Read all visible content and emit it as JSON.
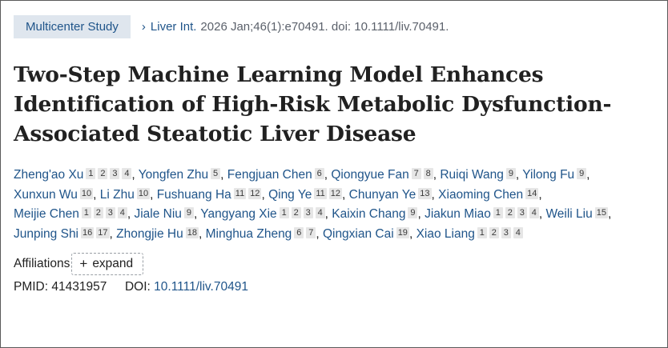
{
  "badge": "Multicenter Study",
  "journal": {
    "name": "Liver Int.",
    "citation": "2026 Jan;46(1):e70491. doi: 10.1111/liv.70491."
  },
  "title": "Two-Step Machine Learning Model Enhances Identification of High-Risk Metabolic Dysfunction-Associated Steatotic Liver Disease",
  "authors": [
    {
      "name": "Zheng'ao Xu",
      "affils": [
        "1",
        "2",
        "3",
        "4"
      ]
    },
    {
      "name": "Yongfen Zhu",
      "affils": [
        "5"
      ]
    },
    {
      "name": "Fengjuan Chen",
      "affils": [
        "6"
      ]
    },
    {
      "name": "Qiongyue Fan",
      "affils": [
        "7",
        "8"
      ]
    },
    {
      "name": "Ruiqi Wang",
      "affils": [
        "9"
      ]
    },
    {
      "name": "Yilong Fu",
      "affils": [
        "9"
      ]
    },
    {
      "name": "Xunxun Wu",
      "affils": [
        "10"
      ]
    },
    {
      "name": "Li Zhu",
      "affils": [
        "10"
      ]
    },
    {
      "name": "Fushuang Ha",
      "affils": [
        "11",
        "12"
      ]
    },
    {
      "name": "Qing Ye",
      "affils": [
        "11",
        "12"
      ]
    },
    {
      "name": "Chunyan Ye",
      "affils": [
        "13"
      ]
    },
    {
      "name": "Xiaoming Chen",
      "affils": [
        "14"
      ]
    },
    {
      "name": "Meijie Chen",
      "affils": [
        "1",
        "2",
        "3",
        "4"
      ]
    },
    {
      "name": "Jiale Niu",
      "affils": [
        "9"
      ]
    },
    {
      "name": "Yangyang Xie",
      "affils": [
        "1",
        "2",
        "3",
        "4"
      ]
    },
    {
      "name": "Kaixin Chang",
      "affils": [
        "9"
      ]
    },
    {
      "name": "Jiakun Miao",
      "affils": [
        "1",
        "2",
        "3",
        "4"
      ]
    },
    {
      "name": "Weili Liu",
      "affils": [
        "15"
      ]
    },
    {
      "name": "Junping Shi",
      "affils": [
        "16",
        "17"
      ]
    },
    {
      "name": "Zhongjie Hu",
      "affils": [
        "18"
      ]
    },
    {
      "name": "Minghua Zheng",
      "affils": [
        "6",
        "7"
      ]
    },
    {
      "name": "Qingxian Cai",
      "affils": [
        "19"
      ]
    },
    {
      "name": "Xiao Liang",
      "affils": [
        "1",
        "2",
        "3",
        "4"
      ]
    }
  ],
  "affiliations": {
    "label": "Affiliations",
    "expand_label": "expand"
  },
  "ids": {
    "pmid_label": "PMID:",
    "pmid": "41431957",
    "doi_label": "DOI:",
    "doi": "10.1111/liv.70491"
  },
  "colors": {
    "link": "#20558a",
    "badge_bg": "#dfe6ee",
    "text": "#212121",
    "muted": "#5b616b",
    "sup_bg": "#e6e6e6"
  },
  "icons": {
    "journal_chevron": "chevron-right-icon",
    "expand": "plus-icon"
  }
}
